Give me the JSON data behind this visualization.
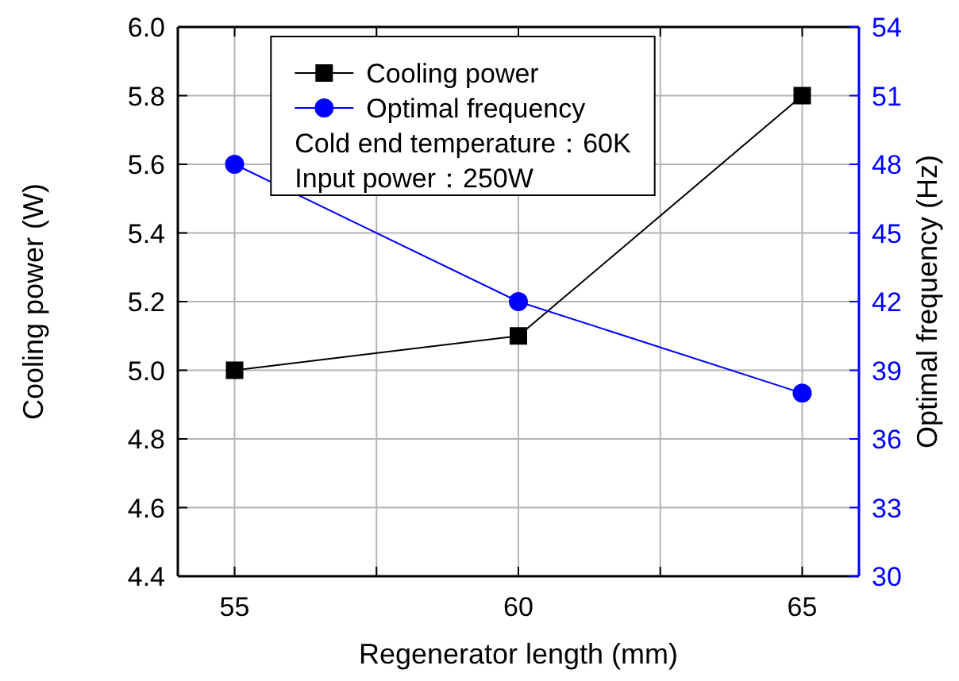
{
  "chart_data": {
    "type": "line",
    "xlabel": "Regenerator length (mm)",
    "ylabel": "Cooling power (W)",
    "y2label": "Optimal frequency (Hz)",
    "x": [
      55,
      60,
      65
    ],
    "series": [
      {
        "name": "Cooling power",
        "color": "#000000",
        "marker": "square",
        "values": [
          5.0,
          5.1,
          5.8
        ]
      },
      {
        "name": "Optimal frequency",
        "color": "#0000ff",
        "marker": "circle",
        "axis": "y2",
        "values": [
          48,
          42,
          38
        ]
      }
    ],
    "annotations": [
      "Cold end temperature：60K",
      "Input power：250W"
    ],
    "xlim": [
      54,
      66
    ],
    "xticks": [
      55,
      {
        "value": 57.5,
        "label": null
      },
      60,
      {
        "value": 62.5,
        "label": null
      },
      65
    ],
    "ylim": [
      4.4,
      6.0
    ],
    "yticks": [
      4.4,
      4.6,
      4.8,
      {
        "value": 5,
        "label": "5.0"
      },
      5.2,
      5.4,
      5.6,
      5.8,
      {
        "value": 6,
        "label": "6.0"
      }
    ],
    "y2lim": [
      30,
      54
    ],
    "y2ticks": [
      30,
      33,
      36,
      39,
      42,
      45,
      48,
      51,
      54
    ],
    "grid": true,
    "legend": "top",
    "line_style": "solid"
  }
}
